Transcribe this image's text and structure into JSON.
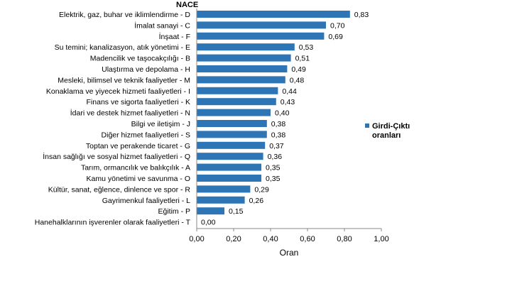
{
  "chart_data": {
    "type": "bar",
    "orientation": "horizontal",
    "title": "NACE",
    "xlabel": "Oran",
    "ylabel": "",
    "xlim": [
      0,
      1.0
    ],
    "xticks": [
      "0,00",
      "0,20",
      "0,40",
      "0,60",
      "0,80",
      "1,00"
    ],
    "legend": {
      "label": "Girdi-Çıktı oranları",
      "lines": [
        "Girdi-Çıktı",
        "oranları"
      ],
      "position": "right"
    },
    "color": "#2e75b6",
    "categories": [
      "Elektrik, gaz, buhar ve iklimlendirme - D",
      "İmalat sanayi - C",
      "İnşaat - F",
      "Su temini; kanalizasyon, atık yönetimi - E",
      "Madencilik ve taşocakçılığı - B",
      "Ulaştırma ve depolama - H",
      "Mesleki, bilimsel ve teknik faaliyetler - M",
      "Konaklama ve yiyecek hizmeti faaliyetleri - I",
      "Finans ve sigorta faaliyetleri - K",
      "İdari ve destek hizmet faaliyetleri - N",
      "Bilgi ve iletişim - J",
      "Diğer hizmet faaliyetleri - S",
      "Toptan ve perakende ticaret - G",
      "İnsan sağlığı ve sosyal hizmet faaliyetleri - Q",
      "Tarım, ormancılık ve balıkçılık - A",
      "Kamu yönetimi ve savunma - O",
      "Kültür, sanat, eğlence, dinlence ve spor - R",
      "Gayrimenkul faaliyetleri - L",
      "Eğitim - P",
      "Hanehalklarının işverenler olarak  faaliyetleri - T"
    ],
    "values": [
      0.83,
      0.7,
      0.69,
      0.53,
      0.51,
      0.49,
      0.48,
      0.44,
      0.43,
      0.4,
      0.38,
      0.38,
      0.37,
      0.36,
      0.35,
      0.35,
      0.29,
      0.26,
      0.15,
      0.0
    ],
    "value_labels": [
      "0,83",
      "0,70",
      "0,69",
      "0,53",
      "0,51",
      "0,49",
      "0,48",
      "0,44",
      "0,43",
      "0,40",
      "0,38",
      "0,38",
      "0,37",
      "0,36",
      "0,35",
      "0,35",
      "0,29",
      "0,26",
      "0,15",
      "0,00"
    ]
  }
}
